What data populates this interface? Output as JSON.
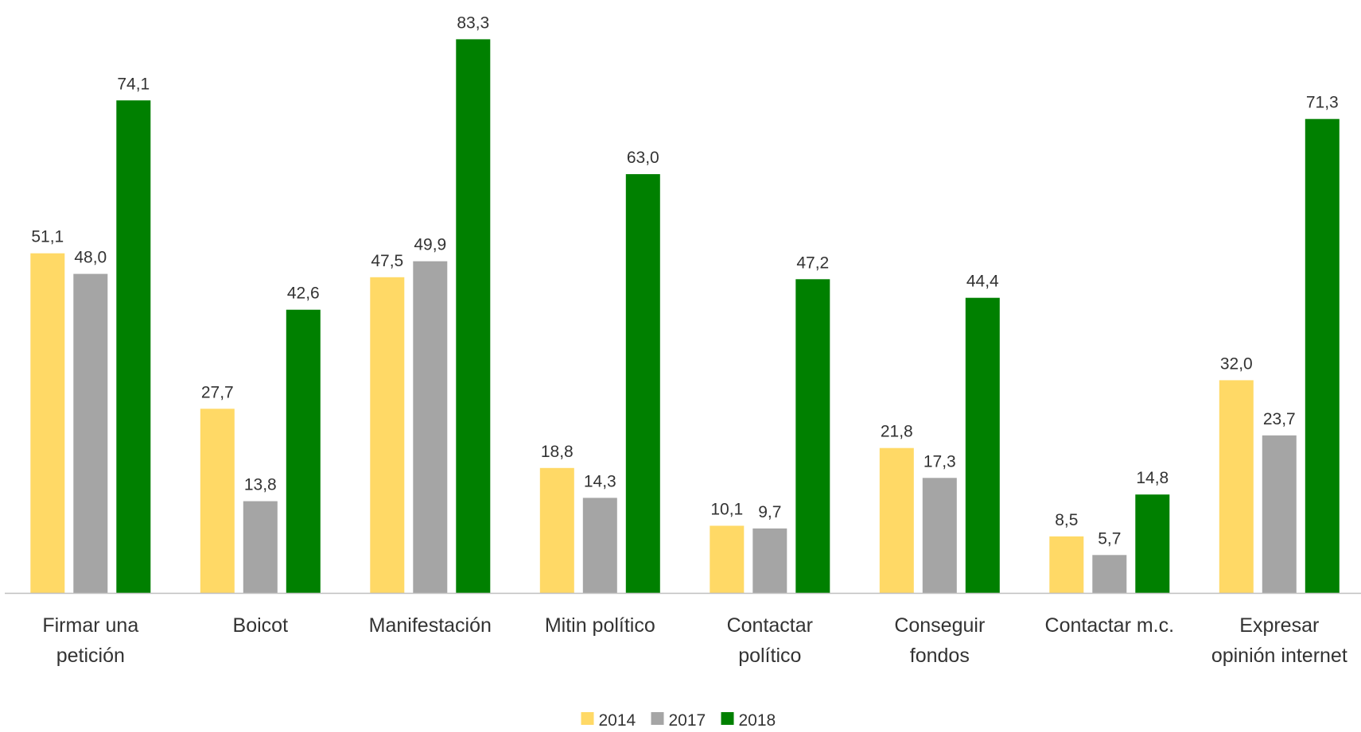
{
  "chart_data": {
    "type": "bar",
    "categories": [
      [
        "Firmar una",
        "petición"
      ],
      [
        "Boicot"
      ],
      [
        "Manifestación"
      ],
      [
        "Mitin político"
      ],
      [
        "Contactar",
        "político"
      ],
      [
        "Conseguir",
        "fondos"
      ],
      [
        "Contactar m.c."
      ],
      [
        "Expresar",
        "opinión internet"
      ]
    ],
    "series": [
      {
        "name": "2014",
        "color": "#FFD966",
        "values": [
          51.1,
          27.7,
          47.5,
          18.8,
          10.1,
          21.8,
          8.5,
          32.0
        ],
        "labels": [
          "51,1",
          "27,7",
          "47,5",
          "18,8",
          "10,1",
          "21,8",
          "8,5",
          "32,0"
        ]
      },
      {
        "name": "2017",
        "color": "#A5A5A5",
        "values": [
          48.0,
          13.8,
          49.9,
          14.3,
          9.7,
          17.3,
          5.7,
          23.7
        ],
        "labels": [
          "48,0",
          "13,8",
          "49,9",
          "14,3",
          "9,7",
          "17,3",
          "5,7",
          "23,7"
        ]
      },
      {
        "name": "2018",
        "color": "#008000",
        "values": [
          74.1,
          42.6,
          83.3,
          63.0,
          47.2,
          44.4,
          14.8,
          71.3
        ],
        "labels": [
          "74,1",
          "42,6",
          "83,3",
          "63,0",
          "47,2",
          "44,4",
          "14,8",
          "71,3"
        ]
      }
    ],
    "title": "",
    "xlabel": "",
    "ylabel": "",
    "ylim": [
      0,
      90
    ],
    "grid": false,
    "legend_position": "bottom-center",
    "axis_color": "#BFBFBF"
  }
}
